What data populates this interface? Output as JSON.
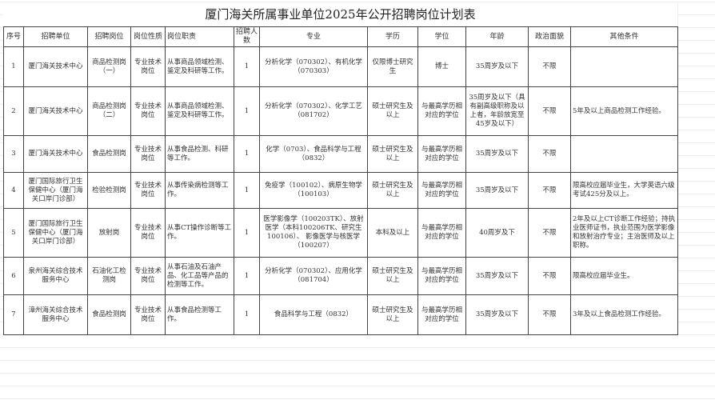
{
  "title": "厦门海关所属事业单位2025年公开招聘岗位计划表",
  "headers": [
    "序号",
    "招聘单位",
    "招聘岗位",
    "岗位性质",
    "岗位职责",
    "招聘人数",
    "专业",
    "学历",
    "学位",
    "年龄",
    "政治面貌",
    "其他条件"
  ],
  "rows": [
    [
      "1",
      "厦门海关技术中心",
      "商品检测岗（一）",
      "专业技术岗位",
      "从事商品领域检测、鉴定及科研等工作。",
      "1",
      "分析化学（070302）、有机化学（070303）",
      "仅限博士研究生",
      "博士",
      "35周岁及以下",
      "不限",
      ""
    ],
    [
      "2",
      "厦门海关技术中心",
      "商品检测岗（二）",
      "专业技术岗位",
      "从事商品领域检测、鉴定及科研等工作。",
      "1",
      "分析化学（070302）、化学工艺（081702）",
      "硕士研究生及以上",
      "与最高学历相对应的学位",
      "35周岁及以下（具有副高级职称及以上者，年龄放宽至45岁及以下）",
      "不限",
      "5年及以上商品检测工作经验。"
    ],
    [
      "3",
      "厦门海关技术中心",
      "食品检测岗",
      "专业技术岗位",
      "从事食品检测、科研等工作。",
      "1",
      "化学（0703）、食品科学与工程（0832）",
      "硕士研究生及以上",
      "与最高学历相对应的学位",
      "35周岁及以下",
      "不限",
      ""
    ],
    [
      "4",
      "厦门国际旅行卫生保健中心（厦门海关口岸门诊部）",
      "检验检测岗",
      "专业技术岗位",
      "从事传染病检测等工作。",
      "1",
      "免疫学（100102）、病原生物学（100103）",
      "硕士研究生及以上",
      "与最高学历相对应的学位",
      "35周岁及以下",
      "不限",
      "限高校应届毕业生，大学英语六级考试425分及以上。"
    ],
    [
      "5",
      "厦门国际旅行卫生保健中心（厦门海关口岸门诊部）",
      "放射岗",
      "专业技术岗位",
      "从事CT操作诊断等工作。",
      "1",
      "医学影像学（100203TK）、放射医学（本科100206TK、研究生100106）、 影像医学与核医学（100207）",
      "本科及以上",
      "与最高学历相对应的学位",
      "40周岁及下",
      "不限",
      "2年及以上CT诊断工作经验；持执业医师证书，执业范围为医学影像和放射治疗专业；主治医师及以上职称。"
    ],
    [
      "6",
      "泉州海关综合技术服务中心",
      "石油化工检测岗",
      "专业技术岗位",
      "从事石油及石油产品、化工品等产品的检测等工作。",
      "1",
      "分析化学（070302）、应用化学（081704）",
      "硕士研究生及以上",
      "与最高学历相对应的学位",
      "35周岁及以下",
      "不限",
      "限高校应届毕业生。"
    ],
    [
      "7",
      "漳州海关综合技术服务中心",
      "食品检测岗",
      "专业技术岗位",
      "从事食品检测等工作。",
      "1",
      "食品科学与工程（0832）",
      "硕士研究生及以上",
      "与最高学历相对应的学位",
      "35周岁及以下",
      "不限",
      "3年及以上食品检测工作经验。"
    ]
  ]
}
